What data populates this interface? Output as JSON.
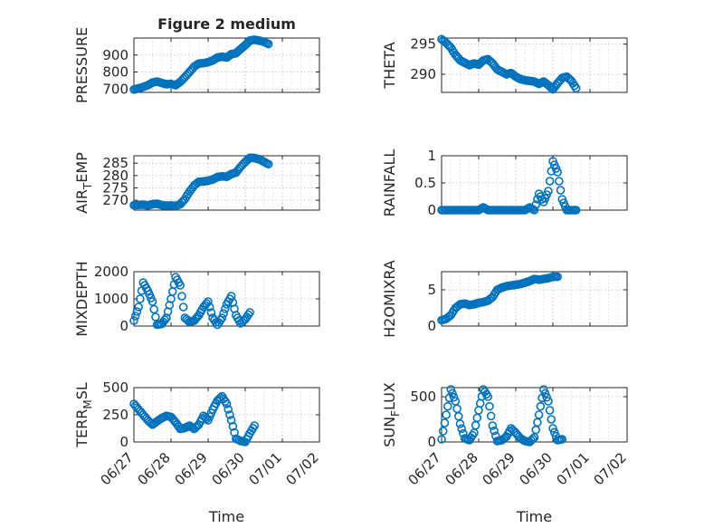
{
  "chart_data": [
    {
      "type": "scatter",
      "panel": "pressure",
      "title": "Figure 2 medium",
      "ylabel": "PRESSURE",
      "ylabel_sub": "",
      "xlim": [
        "06/27",
        "07/02"
      ],
      "ylim": [
        680,
        1000
      ],
      "yticks": [
        700,
        800,
        900
      ],
      "ytick_labels": [
        "700",
        "800",
        "900"
      ],
      "grid": true,
      "show_xtick_labels": false,
      "xlabel": "",
      "points": [
        [
          "06/27 00:00",
          697
        ],
        [
          "06/27 03:00",
          704
        ],
        [
          "06/27 06:00",
          712
        ],
        [
          "06/27 09:00",
          722
        ],
        [
          "06/27 12:00",
          738
        ],
        [
          "06/27 15:00",
          744
        ],
        [
          "06/27 18:00",
          735
        ],
        [
          "06/27 21:00",
          728
        ],
        [
          "06/28 00:00",
          730
        ],
        [
          "06/28 03:00",
          722
        ],
        [
          "06/28 06:00",
          742
        ],
        [
          "06/28 09:00",
          770
        ],
        [
          "06/28 12:00",
          800
        ],
        [
          "06/28 15:00",
          832
        ],
        [
          "06/28 18:00",
          850
        ],
        [
          "06/28 21:00",
          852
        ],
        [
          "06/29 00:00",
          858
        ],
        [
          "06/29 03:00",
          868
        ],
        [
          "06/29 06:00",
          885
        ],
        [
          "06/29 09:00",
          890
        ],
        [
          "06/29 12:00",
          885
        ],
        [
          "06/29 15:00",
          905
        ],
        [
          "06/29 18:00",
          910
        ],
        [
          "06/29 21:00",
          935
        ],
        [
          "06/30 00:00",
          958
        ],
        [
          "06/30 03:00",
          985
        ],
        [
          "06/30 06:00",
          990
        ],
        [
          "06/30 09:00",
          985
        ],
        [
          "06/30 12:00",
          978
        ],
        [
          "06/30 15:00",
          965
        ]
      ]
    },
    {
      "type": "scatter",
      "panel": "theta",
      "title": "",
      "ylabel": "THETA",
      "ylabel_sub": "",
      "xlim": [
        "06/27",
        "07/02"
      ],
      "ylim": [
        287,
        296
      ],
      "yticks": [
        290,
        295
      ],
      "ytick_labels": [
        "290",
        "295"
      ],
      "grid": true,
      "show_xtick_labels": false,
      "xlabel": "",
      "points": [
        [
          "06/27 00:00",
          295.8
        ],
        [
          "06/27 03:00",
          295.2
        ],
        [
          "06/27 06:00",
          294.4
        ],
        [
          "06/27 09:00",
          293.2
        ],
        [
          "06/27 12:00",
          292.3
        ],
        [
          "06/27 15:00",
          291.9
        ],
        [
          "06/27 18:00",
          291.5
        ],
        [
          "06/27 21:00",
          291.8
        ],
        [
          "06/28 00:00",
          291.6
        ],
        [
          "06/28 03:00",
          292.3
        ],
        [
          "06/28 06:00",
          292.5
        ],
        [
          "06/28 09:00",
          291.8
        ],
        [
          "06/28 12:00",
          290.8
        ],
        [
          "06/28 15:00",
          290.4
        ],
        [
          "06/28 18:00",
          290.0
        ],
        [
          "06/28 21:00",
          290.2
        ],
        [
          "06/29 00:00",
          289.6
        ],
        [
          "06/29 03:00",
          289.2
        ],
        [
          "06/29 06:00",
          289.0
        ],
        [
          "06/29 09:00",
          288.9
        ],
        [
          "06/29 12:00",
          288.8
        ],
        [
          "06/29 15:00",
          288.4
        ],
        [
          "06/29 18:00",
          288.8
        ],
        [
          "06/29 21:00",
          288.2
        ],
        [
          "06/30 00:00",
          287.5
        ],
        [
          "06/30 03:00",
          288.5
        ],
        [
          "06/30 06:00",
          289.4
        ],
        [
          "06/30 09:00",
          289.6
        ],
        [
          "06/30 12:00",
          288.9
        ],
        [
          "06/30 15:00",
          287.7
        ]
      ]
    },
    {
      "type": "scatter",
      "panel": "air_temp",
      "title": "",
      "ylabel": "AIR",
      "ylabel_sub": "T",
      "ylabel_suffix": "EMP",
      "xlim": [
        "06/27",
        "07/02"
      ],
      "ylim": [
        266,
        288
      ],
      "yticks": [
        270,
        275,
        280,
        285
      ],
      "ytick_labels": [
        "270",
        "275",
        "280",
        "285"
      ],
      "grid": true,
      "show_xtick_labels": false,
      "xlabel": "",
      "points": [
        [
          "06/27 00:00",
          268.0
        ],
        [
          "06/27 03:00",
          268.1
        ],
        [
          "06/27 06:00",
          268.2
        ],
        [
          "06/27 09:00",
          267.9
        ],
        [
          "06/27 12:00",
          268.4
        ],
        [
          "06/27 15:00",
          268.6
        ],
        [
          "06/27 18:00",
          268.0
        ],
        [
          "06/27 21:00",
          267.8
        ],
        [
          "06/28 00:00",
          267.9
        ],
        [
          "06/28 03:00",
          267.7
        ],
        [
          "06/28 06:00",
          268.4
        ],
        [
          "06/28 09:00",
          270.5
        ],
        [
          "06/28 12:00",
          273.5
        ],
        [
          "06/28 15:00",
          276.0
        ],
        [
          "06/28 18:00",
          277.5
        ],
        [
          "06/28 21:00",
          277.6
        ],
        [
          "06/29 00:00",
          277.9
        ],
        [
          "06/29 03:00",
          278.4
        ],
        [
          "06/29 06:00",
          279.4
        ],
        [
          "06/29 09:00",
          279.7
        ],
        [
          "06/29 12:00",
          279.5
        ],
        [
          "06/29 15:00",
          280.6
        ],
        [
          "06/29 18:00",
          281.2
        ],
        [
          "06/29 21:00",
          283.5
        ],
        [
          "06/30 00:00",
          285.5
        ],
        [
          "06/30 03:00",
          287.2
        ],
        [
          "06/30 06:00",
          287.1
        ],
        [
          "06/30 09:00",
          286.6
        ],
        [
          "06/30 12:00",
          285.6
        ],
        [
          "06/30 15:00",
          284.6
        ]
      ]
    },
    {
      "type": "scatter",
      "panel": "rainfall",
      "title": "",
      "ylabel": "RAINFALL",
      "ylabel_sub": "",
      "xlim": [
        "06/27",
        "07/02"
      ],
      "ylim": [
        0,
        1
      ],
      "yticks": [
        0,
        0.5,
        1
      ],
      "ytick_labels": [
        "0",
        "0.5",
        "1"
      ],
      "grid": true,
      "show_xtick_labels": false,
      "xlabel": "",
      "points": [
        [
          "06/27 00:00",
          0
        ],
        [
          "06/27 03:00",
          0
        ],
        [
          "06/27 06:00",
          0
        ],
        [
          "06/27 09:00",
          0
        ],
        [
          "06/27 12:00",
          0
        ],
        [
          "06/27 15:00",
          0
        ],
        [
          "06/27 18:00",
          0
        ],
        [
          "06/27 21:00",
          0
        ],
        [
          "06/28 00:00",
          0
        ],
        [
          "06/28 03:00",
          0.05
        ],
        [
          "06/28 06:00",
          0
        ],
        [
          "06/28 09:00",
          0
        ],
        [
          "06/28 12:00",
          0
        ],
        [
          "06/28 15:00",
          0
        ],
        [
          "06/28 18:00",
          0
        ],
        [
          "06/28 21:00",
          0
        ],
        [
          "06/29 00:00",
          0
        ],
        [
          "06/29 03:00",
          0
        ],
        [
          "06/29 06:00",
          0
        ],
        [
          "06/29 09:00",
          0.05
        ],
        [
          "06/29 12:00",
          0
        ],
        [
          "06/29 15:00",
          0.3
        ],
        [
          "06/29 18:00",
          0.15
        ],
        [
          "06/29 21:00",
          0.35
        ],
        [
          "06/30 00:00",
          0.9
        ],
        [
          "06/30 03:00",
          0.7
        ],
        [
          "06/30 06:00",
          0.2
        ],
        [
          "06/30 09:00",
          0
        ],
        [
          "06/30 12:00",
          0
        ],
        [
          "06/30 15:00",
          0
        ]
      ]
    },
    {
      "type": "scatter",
      "panel": "mixdepth",
      "title": "",
      "ylabel": "MIXDEPTH",
      "ylabel_sub": "",
      "xlim": [
        "06/27",
        "07/02"
      ],
      "ylim": [
        0,
        2000
      ],
      "yticks": [
        0,
        1000,
        2000
      ],
      "ytick_labels": [
        "0",
        "1000",
        "2000"
      ],
      "grid": true,
      "show_xtick_labels": false,
      "xlabel": "",
      "points": [
        [
          "06/27 00:00",
          200
        ],
        [
          "06/27 03:00",
          700
        ],
        [
          "06/27 06:00",
          1600
        ],
        [
          "06/27 09:00",
          1300
        ],
        [
          "06/27 12:00",
          900
        ],
        [
          "06/27 15:00",
          50
        ],
        [
          "06/27 18:00",
          80
        ],
        [
          "06/27 21:00",
          300
        ],
        [
          "06/28 00:00",
          1000
        ],
        [
          "06/28 03:00",
          1800
        ],
        [
          "06/28 06:00",
          1500
        ],
        [
          "06/28 09:00",
          300
        ],
        [
          "06/28 12:00",
          150
        ],
        [
          "06/28 15:00",
          200
        ],
        [
          "06/28 18:00",
          400
        ],
        [
          "06/28 21:00",
          700
        ],
        [
          "06/29 00:00",
          900
        ],
        [
          "06/29 03:00",
          300
        ],
        [
          "06/29 06:00",
          50
        ],
        [
          "06/29 09:00",
          300
        ],
        [
          "06/29 12:00",
          800
        ],
        [
          "06/29 15:00",
          1100
        ],
        [
          "06/29 18:00",
          400
        ],
        [
          "06/29 21:00",
          100
        ],
        [
          "06/30 00:00",
          250
        ],
        [
          "06/30 03:00",
          500
        ]
      ]
    },
    {
      "type": "scatter",
      "panel": "h2omixra",
      "title": "",
      "ylabel": "H2OMIXRA",
      "ylabel_sub": "",
      "xlim": [
        "06/27",
        "07/02"
      ],
      "ylim": [
        0,
        7.5
      ],
      "yticks": [
        0,
        5
      ],
      "ytick_labels": [
        "0",
        "5"
      ],
      "grid": true,
      "show_xtick_labels": false,
      "xlabel": "",
      "points": [
        [
          "06/27 00:00",
          0.8
        ],
        [
          "06/27 03:00",
          1.0
        ],
        [
          "06/27 06:00",
          1.5
        ],
        [
          "06/27 09:00",
          2.5
        ],
        [
          "06/27 12:00",
          3.0
        ],
        [
          "06/27 15:00",
          3.1
        ],
        [
          "06/27 18:00",
          2.9
        ],
        [
          "06/27 21:00",
          3.0
        ],
        [
          "06/28 00:00",
          3.2
        ],
        [
          "06/28 03:00",
          3.3
        ],
        [
          "06/28 06:00",
          3.5
        ],
        [
          "06/28 09:00",
          4.0
        ],
        [
          "06/28 12:00",
          5.0
        ],
        [
          "06/28 15:00",
          5.3
        ],
        [
          "06/28 18:00",
          5.5
        ],
        [
          "06/28 21:00",
          5.6
        ],
        [
          "06/29 00:00",
          5.7
        ],
        [
          "06/29 03:00",
          5.8
        ],
        [
          "06/29 06:00",
          6.0
        ],
        [
          "06/29 09:00",
          6.2
        ],
        [
          "06/29 12:00",
          6.5
        ],
        [
          "06/29 15:00",
          6.4
        ],
        [
          "06/29 18:00",
          6.5
        ],
        [
          "06/29 21:00",
          6.6
        ],
        [
          "06/30 00:00",
          6.8
        ],
        [
          "06/30 03:00",
          6.8
        ]
      ]
    },
    {
      "type": "scatter",
      "panel": "terr_msl",
      "title": "",
      "ylabel": "TERR",
      "ylabel_sub": "M",
      "ylabel_suffix": "SL",
      "xlim": [
        "06/27",
        "07/02"
      ],
      "ylim": [
        0,
        500
      ],
      "yticks": [
        0,
        250,
        500
      ],
      "ytick_labels": [
        "0",
        "250",
        "500"
      ],
      "grid": true,
      "show_xtick_labels": true,
      "xlabel": "Time",
      "xtick_labels": [
        "06/27",
        "06/28",
        "06/29",
        "06/30",
        "07/01",
        "07/02"
      ],
      "points": [
        [
          "06/27 00:00",
          350
        ],
        [
          "06/27 03:00",
          300
        ],
        [
          "06/27 06:00",
          250
        ],
        [
          "06/27 09:00",
          200
        ],
        [
          "06/27 12:00",
          160
        ],
        [
          "06/27 15:00",
          190
        ],
        [
          "06/27 18:00",
          220
        ],
        [
          "06/27 21:00",
          240
        ],
        [
          "06/28 00:00",
          230
        ],
        [
          "06/28 03:00",
          180
        ],
        [
          "06/28 06:00",
          120
        ],
        [
          "06/28 09:00",
          130
        ],
        [
          "06/28 12:00",
          150
        ],
        [
          "06/28 15:00",
          120
        ],
        [
          "06/28 18:00",
          160
        ],
        [
          "06/28 21:00",
          240
        ],
        [
          "06/29 00:00",
          200
        ],
        [
          "06/29 03:00",
          300
        ],
        [
          "06/29 06:00",
          380
        ],
        [
          "06/29 09:00",
          420
        ],
        [
          "06/29 12:00",
          350
        ],
        [
          "06/29 15:00",
          200
        ],
        [
          "06/29 18:00",
          30
        ],
        [
          "06/29 21:00",
          10
        ],
        [
          "06/30 00:00",
          0
        ],
        [
          "06/30 03:00",
          80
        ],
        [
          "06/30 06:00",
          150
        ]
      ]
    },
    {
      "type": "scatter",
      "panel": "sun_flux",
      "title": "",
      "ylabel": "SUN",
      "ylabel_sub": "F",
      "ylabel_suffix": "LUX",
      "xlim": [
        "06/27",
        "07/02"
      ],
      "ylim": [
        0,
        600
      ],
      "yticks": [
        0,
        500
      ],
      "ytick_labels": [
        "0",
        "500"
      ],
      "grid": true,
      "show_xtick_labels": true,
      "xlabel": "Time",
      "xtick_labels": [
        "06/27",
        "06/28",
        "06/29",
        "06/30",
        "07/01",
        "07/02"
      ],
      "points": [
        [
          "06/27 00:00",
          30
        ],
        [
          "06/27 03:00",
          300
        ],
        [
          "06/27 06:00",
          580
        ],
        [
          "06/27 09:00",
          450
        ],
        [
          "06/27 12:00",
          200
        ],
        [
          "06/27 15:00",
          40
        ],
        [
          "06/27 18:00",
          20
        ],
        [
          "06/27 21:00",
          100
        ],
        [
          "06/28 00:00",
          350
        ],
        [
          "06/28 03:00",
          580
        ],
        [
          "06/28 06:00",
          500
        ],
        [
          "06/28 09:00",
          180
        ],
        [
          "06/28 12:00",
          10
        ],
        [
          "06/28 15:00",
          20
        ],
        [
          "06/28 18:00",
          60
        ],
        [
          "06/28 21:00",
          150
        ],
        [
          "06/29 00:00",
          100
        ],
        [
          "06/29 03:00",
          40
        ],
        [
          "06/29 06:00",
          10
        ],
        [
          "06/29 09:00",
          0
        ],
        [
          "06/29 12:00",
          50
        ],
        [
          "06/29 15:00",
          300
        ],
        [
          "06/29 18:00",
          580
        ],
        [
          "06/29 21:00",
          450
        ],
        [
          "06/30 00:00",
          150
        ],
        [
          "06/30 03:00",
          20
        ],
        [
          "06/30 06:00",
          30
        ]
      ]
    }
  ]
}
